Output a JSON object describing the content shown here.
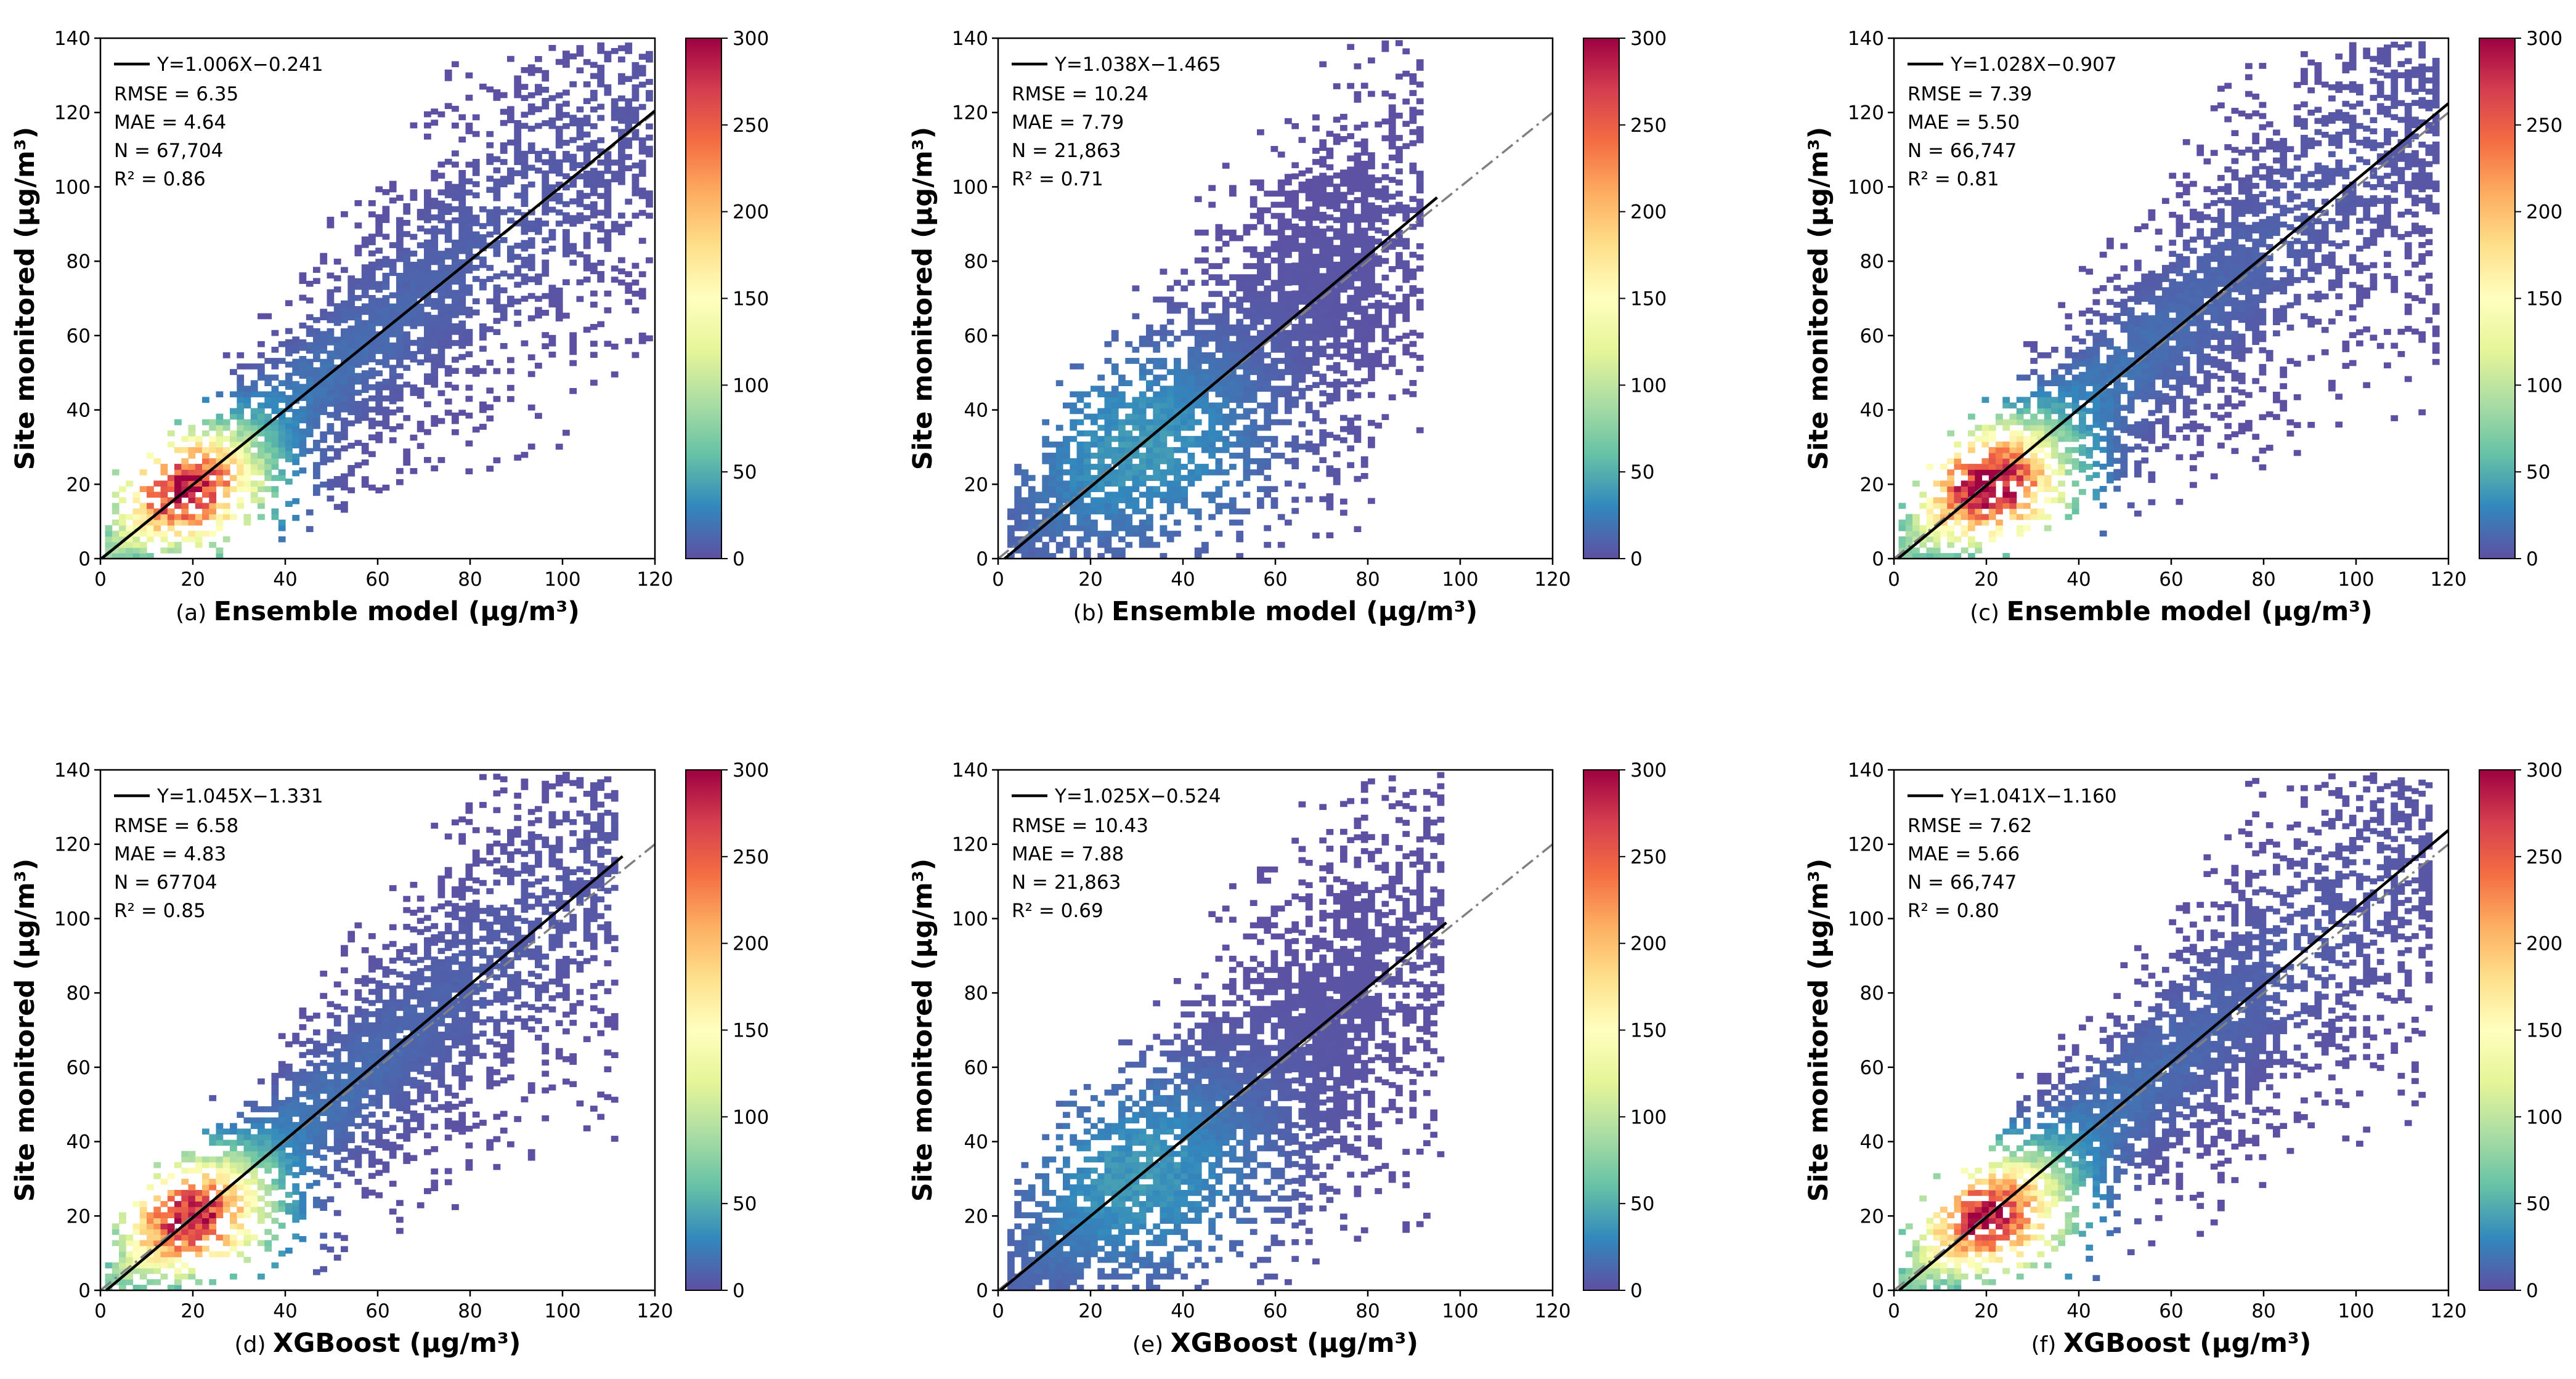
{
  "figure": {
    "colorbar": {
      "ticks": [
        0,
        50,
        100,
        150,
        200,
        250,
        300
      ],
      "colors": [
        "#5e4fa2",
        "#3288bd",
        "#66c2a5",
        "#abdda4",
        "#e6f598",
        "#ffffbf",
        "#fee08b",
        "#fdae61",
        "#f46d43",
        "#d53e4f",
        "#9e0142"
      ]
    },
    "ylabel": "Site monitored (μg/m³)",
    "line_colors": {
      "fit": "#000000",
      "reference": "#808080"
    }
  },
  "chart_data": [
    {
      "type": "heatmap",
      "panel": "(a)",
      "xlabel_prefix": "(a)",
      "xlabel": "Ensemble model (μg/m³)",
      "ylabel": "Site monitored (μg/m³)",
      "xlim": [
        0,
        120
      ],
      "ylim": [
        0,
        140
      ],
      "xticks": [
        0,
        20,
        40,
        60,
        80,
        100,
        120
      ],
      "yticks": [
        0,
        20,
        40,
        60,
        80,
        100,
        120,
        140
      ],
      "fit": {
        "slope": 1.006,
        "intercept": -0.241,
        "x_end": 120
      },
      "legend_label": "Y=1.006X−0.241",
      "stats": [
        "RMSE = 6.35",
        "MAE = 4.64",
        "N = 67,704",
        "R² = 0.86"
      ],
      "density_center": [
        18,
        18
      ],
      "density_peak": 300,
      "x_extent": [
        1,
        119
      ],
      "colorbar_range": [
        0,
        300
      ]
    },
    {
      "type": "heatmap",
      "panel": "(b)",
      "xlabel_prefix": "(b)",
      "xlabel": "Ensemble model (μg/m³)",
      "ylabel": "Site monitored (μg/m³)",
      "xlim": [
        0,
        120
      ],
      "ylim": [
        0,
        140
      ],
      "xticks": [
        0,
        20,
        40,
        60,
        80,
        100,
        120
      ],
      "yticks": [
        0,
        20,
        40,
        60,
        80,
        100,
        120,
        140
      ],
      "fit": {
        "slope": 1.038,
        "intercept": -1.465,
        "x_end": 95
      },
      "legend_label": "Y=1.038X−1.465",
      "stats": [
        "RMSE = 10.24",
        "MAE = 7.79",
        "N = 21,863",
        "R² = 0.71"
      ],
      "density_center": [
        30,
        30
      ],
      "density_peak": 40,
      "x_extent": [
        2,
        92
      ],
      "colorbar_range": [
        0,
        300
      ]
    },
    {
      "type": "heatmap",
      "panel": "(c)",
      "xlabel_prefix": "(c)",
      "xlabel": "Ensemble model (μg/m³)",
      "ylabel": "Site monitored (μg/m³)",
      "xlim": [
        0,
        120
      ],
      "ylim": [
        0,
        140
      ],
      "xticks": [
        0,
        20,
        40,
        60,
        80,
        100,
        120
      ],
      "yticks": [
        0,
        20,
        40,
        60,
        80,
        100,
        120,
        140
      ],
      "fit": {
        "slope": 1.028,
        "intercept": -0.907,
        "x_end": 120
      },
      "legend_label": "Y=1.028X−0.907",
      "stats": [
        "RMSE = 7.39",
        "MAE = 5.50",
        "N = 66,747",
        "R² = 0.81"
      ],
      "density_center": [
        20,
        19
      ],
      "density_peak": 320,
      "x_extent": [
        1,
        118
      ],
      "colorbar_range": [
        0,
        300
      ]
    },
    {
      "type": "heatmap",
      "panel": "(d)",
      "xlabel_prefix": "(d)",
      "xlabel": "XGBoost (μg/m³)",
      "ylabel": "Site monitored (μg/m³)",
      "xlim": [
        0,
        120
      ],
      "ylim": [
        0,
        140
      ],
      "xticks": [
        0,
        20,
        40,
        60,
        80,
        100,
        120
      ],
      "yticks": [
        0,
        20,
        40,
        60,
        80,
        100,
        120,
        140
      ],
      "fit": {
        "slope": 1.045,
        "intercept": -1.331,
        "x_end": 113
      },
      "legend_label": "Y=1.045X−1.331",
      "stats": [
        "RMSE = 6.58",
        "MAE = 4.83",
        "N = 67704",
        "R² = 0.85"
      ],
      "density_center": [
        19,
        19
      ],
      "density_peak": 300,
      "x_extent": [
        1,
        112
      ],
      "colorbar_range": [
        0,
        300
      ]
    },
    {
      "type": "heatmap",
      "panel": "(e)",
      "xlabel_prefix": "(e)",
      "xlabel": "XGBoost (μg/m³)",
      "ylabel": "Site monitored (μg/m³)",
      "xlim": [
        0,
        120
      ],
      "ylim": [
        0,
        140
      ],
      "xticks": [
        0,
        20,
        40,
        60,
        80,
        100,
        120
      ],
      "yticks": [
        0,
        20,
        40,
        60,
        80,
        100,
        120,
        140
      ],
      "fit": {
        "slope": 1.025,
        "intercept": -0.524,
        "x_end": 97
      },
      "legend_label": "Y=1.025X−0.524",
      "stats": [
        "RMSE = 10.43",
        "MAE = 7.88",
        "N = 21,863",
        "R² = 0.69"
      ],
      "density_center": [
        30,
        30
      ],
      "density_peak": 40,
      "x_extent": [
        2,
        96
      ],
      "colorbar_range": [
        0,
        300
      ]
    },
    {
      "type": "heatmap",
      "panel": "(f)",
      "xlabel_prefix": "(f)",
      "xlabel": "XGBoost (μg/m³)",
      "ylabel": "Site monitored (μg/m³)",
      "xlim": [
        0,
        120
      ],
      "ylim": [
        0,
        140
      ],
      "xticks": [
        0,
        20,
        40,
        60,
        80,
        100,
        120
      ],
      "yticks": [
        0,
        20,
        40,
        60,
        80,
        100,
        120,
        140
      ],
      "fit": {
        "slope": 1.041,
        "intercept": -1.16,
        "x_end": 120
      },
      "legend_label": "Y=1.041X−1.160",
      "stats": [
        "RMSE = 7.62",
        "MAE = 5.66",
        "N = 66,747",
        "R² = 0.80"
      ],
      "density_center": [
        20,
        19
      ],
      "density_peak": 300,
      "x_extent": [
        1,
        116
      ],
      "colorbar_range": [
        0,
        300
      ]
    }
  ]
}
